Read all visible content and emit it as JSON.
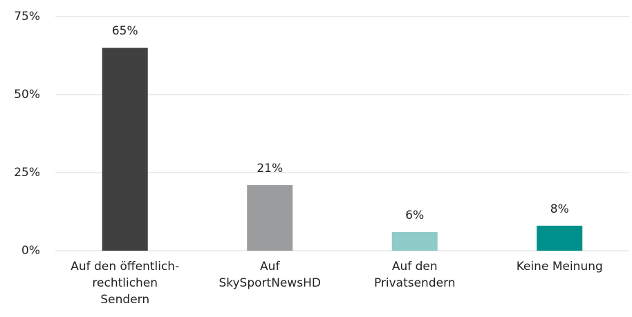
{
  "chart_data": {
    "type": "bar",
    "categories": [
      "Auf den öffentlich-\nrechtlichen\nSendern",
      "Auf\nSkySportNewsHD",
      "Auf den\nPrivatsendern",
      "Keine Meinung"
    ],
    "values": [
      65,
      21,
      6,
      8
    ],
    "value_labels": [
      "65%",
      "21%",
      "6%",
      "8%"
    ],
    "colors": [
      "#404040",
      "#9a9c9d",
      "#8fcbc9",
      "#00908c"
    ],
    "ylim": [
      0,
      75
    ],
    "yticks": [
      {
        "value": 0,
        "label": "0%"
      },
      {
        "value": 25,
        "label": "25%"
      },
      {
        "value": 50,
        "label": "50%"
      },
      {
        "value": 75,
        "label": "75%"
      }
    ],
    "grid": true
  }
}
